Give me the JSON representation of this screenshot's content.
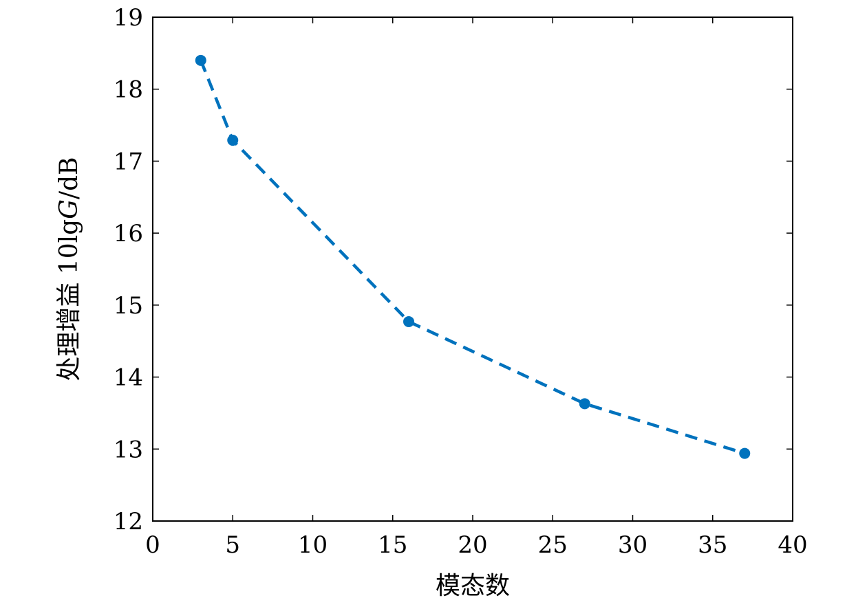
{
  "chart_data": {
    "type": "line",
    "title": "",
    "xlabel": "模态数",
    "ylabel": "处理增益 10lgG/dB",
    "ylabel_parts": {
      "prefix": "处理增益 10lg",
      "italic": "G",
      "suffix": "/dB"
    },
    "xlim": [
      0,
      40
    ],
    "ylim": [
      12,
      19
    ],
    "xticks": [
      0,
      5,
      10,
      15,
      20,
      25,
      30,
      35,
      40
    ],
    "yticks": [
      12,
      13,
      14,
      15,
      16,
      17,
      18,
      19
    ],
    "grid": false,
    "series": [
      {
        "color": "#0072BD",
        "line_style": "dashed",
        "marker": "circle",
        "x": [
          3,
          5,
          16,
          27,
          37
        ],
        "y": [
          18.4,
          17.29,
          14.77,
          13.63,
          12.94
        ]
      }
    ]
  }
}
